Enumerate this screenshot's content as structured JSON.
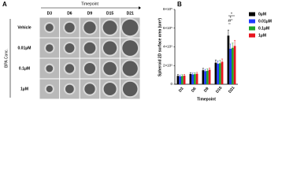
{
  "panel_a": {
    "label": "A",
    "column_header": "Timepoint",
    "columns": [
      "D3",
      "D6",
      "D9",
      "D15",
      "D21"
    ],
    "row_header": "BPA Conc.",
    "rows": [
      "Vehicle",
      "0.01μM",
      "0.1μM",
      "1μM"
    ]
  },
  "chart_data": {
    "type": "bar",
    "panel_label": "B",
    "x_label": "Timepoint",
    "y_label": "Spheroid 2D surface area (um²)",
    "categories": [
      "D3",
      "D6",
      "D9",
      "D15",
      "D21"
    ],
    "series": [
      {
        "name": "0μM",
        "color": "#000000",
        "values": [
          90000,
          110000,
          150000,
          230000,
          520000
        ],
        "errors": [
          15000,
          15000,
          20000,
          30000,
          60000
        ]
      },
      {
        "name": "0.01μM",
        "color": "#1f3bff",
        "values": [
          85000,
          105000,
          140000,
          220000,
          380000
        ],
        "errors": [
          15000,
          15000,
          20000,
          30000,
          50000
        ]
      },
      {
        "name": "0.1μM",
        "color": "#1fa52a",
        "values": [
          88000,
          108000,
          145000,
          225000,
          390000
        ],
        "errors": [
          15000,
          15000,
          20000,
          30000,
          50000
        ]
      },
      {
        "name": "1μM",
        "color": "#e8141e",
        "values": [
          92000,
          112000,
          155000,
          240000,
          410000
        ],
        "errors": [
          15000,
          15000,
          20000,
          30000,
          60000
        ]
      }
    ],
    "annotations": [
      "*",
      "*",
      "**"
    ],
    "ylim": [
      0,
      800000
    ],
    "yticks": [
      0,
      {
        "value": 200000,
        "label": "2×10⁵"
      },
      {
        "value": 400000,
        "label": "4×10⁵"
      },
      {
        "value": 600000,
        "label": "6×10⁵"
      },
      {
        "value": 800000,
        "label": "8×10⁵"
      }
    ],
    "grid": false
  }
}
